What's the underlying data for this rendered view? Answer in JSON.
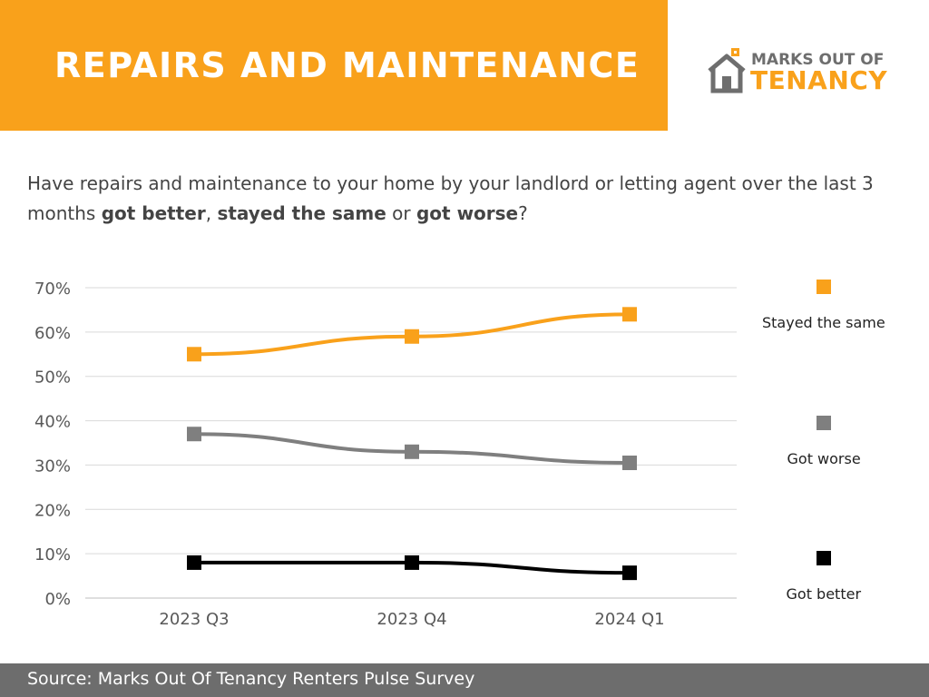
{
  "header": {
    "title": "REPAIRS AND MAINTENANCE",
    "band_color": "#f9a11b"
  },
  "logo": {
    "line1": "MARKS OUT OF",
    "line2": "TENANCY",
    "icon": "house-icon"
  },
  "question": {
    "part1": "Have repairs and maintenance to your home by your landlord or letting agent over the last 3 months ",
    "opt1": "got better",
    "sep1": ", ",
    "opt2": "stayed the same",
    "sep2": " or ",
    "opt3": "got worse",
    "end": "?"
  },
  "chart_data": {
    "type": "line",
    "categories": [
      "2023 Q3",
      "2023 Q4",
      "2024 Q1"
    ],
    "ylim": [
      0,
      70
    ],
    "yticks": [
      "0%",
      "10%",
      "20%",
      "30%",
      "40%",
      "50%",
      "60%",
      "70%"
    ],
    "grid": true,
    "legend_position": "right",
    "series": [
      {
        "name": "Stayed the same",
        "values": [
          55,
          59,
          64
        ],
        "color": "#f9a11b"
      },
      {
        "name": "Got worse",
        "values": [
          37,
          33,
          30.5
        ],
        "color": "#7f7f7f"
      },
      {
        "name": "Got better",
        "values": [
          8,
          8,
          5.7
        ],
        "color": "#000000"
      }
    ]
  },
  "footer": {
    "source": "Source: Marks Out Of Tenancy Renters Pulse Survey",
    "color": "#6d6d6d"
  }
}
